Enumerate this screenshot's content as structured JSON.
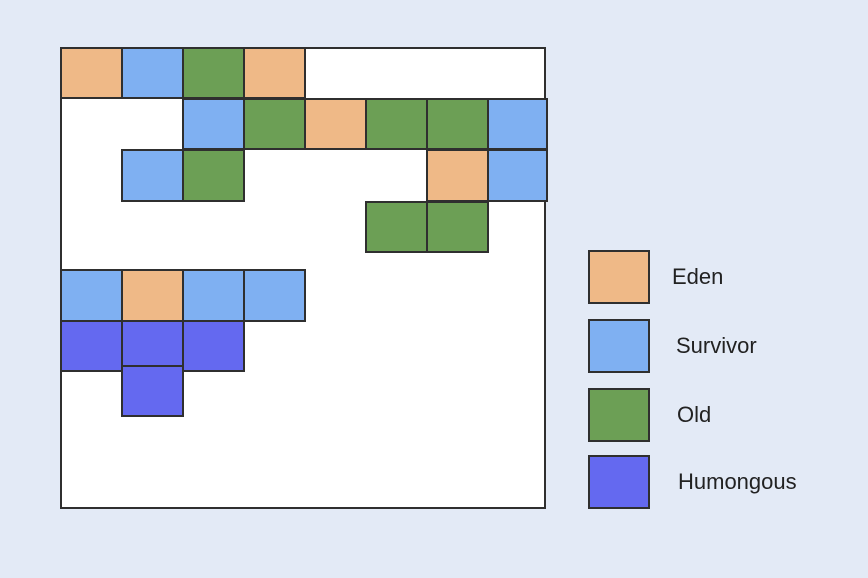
{
  "colors": {
    "background": "#e3eaf6",
    "heap_background": "#ffffff",
    "border": "#2f2f2f",
    "eden": "#efb987",
    "survivor": "#7fb0f2",
    "old": "#6c9f55",
    "humongous": "#6469f0"
  },
  "grid": {
    "columns": 8,
    "rows": 9,
    "cells": [
      {
        "row": 0,
        "col": 0,
        "type": "eden"
      },
      {
        "row": 0,
        "col": 1,
        "type": "survivor"
      },
      {
        "row": 0,
        "col": 2,
        "type": "old"
      },
      {
        "row": 0,
        "col": 3,
        "type": "eden"
      },
      {
        "row": 1,
        "col": 2,
        "type": "survivor"
      },
      {
        "row": 1,
        "col": 3,
        "type": "old"
      },
      {
        "row": 1,
        "col": 4,
        "type": "eden"
      },
      {
        "row": 1,
        "col": 5,
        "type": "old"
      },
      {
        "row": 1,
        "col": 6,
        "type": "old"
      },
      {
        "row": 1,
        "col": 7,
        "type": "survivor"
      },
      {
        "row": 2,
        "col": 1,
        "type": "survivor"
      },
      {
        "row": 2,
        "col": 2,
        "type": "old"
      },
      {
        "row": 2,
        "col": 6,
        "type": "eden"
      },
      {
        "row": 2,
        "col": 7,
        "type": "survivor"
      },
      {
        "row": 3,
        "col": 5,
        "type": "old"
      },
      {
        "row": 3,
        "col": 6,
        "type": "old"
      },
      {
        "row": 4,
        "col": 0,
        "type": "survivor"
      },
      {
        "row": 4,
        "col": 1,
        "type": "eden"
      },
      {
        "row": 4,
        "col": 2,
        "type": "survivor"
      },
      {
        "row": 4,
        "col": 3,
        "type": "survivor"
      },
      {
        "row": 5,
        "col": 0,
        "type": "humongous"
      },
      {
        "row": 5,
        "col": 1,
        "type": "humongous"
      },
      {
        "row": 5,
        "col": 2,
        "type": "humongous"
      },
      {
        "row": 6,
        "col": 1,
        "type": "humongous"
      }
    ]
  },
  "legend": {
    "items": [
      {
        "type": "eden",
        "label": "Eden"
      },
      {
        "type": "survivor",
        "label": "Survivor"
      },
      {
        "type": "old",
        "label": "Old"
      },
      {
        "type": "humongous",
        "label": "Humongous"
      }
    ]
  }
}
